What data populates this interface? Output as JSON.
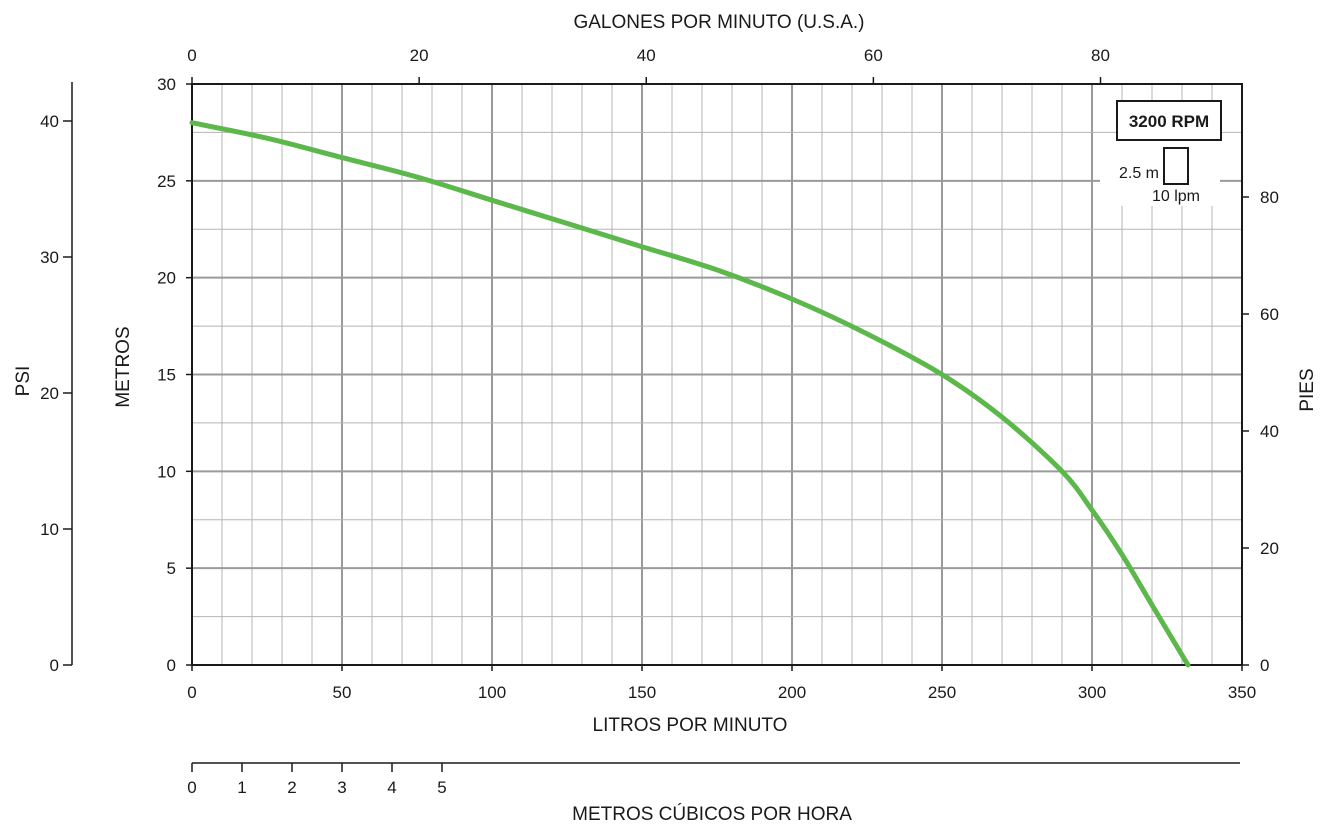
{
  "chart_data": {
    "type": "line",
    "title": "",
    "grid": true,
    "axes": {
      "x_bottom": {
        "label": "LITROS POR MINUTO",
        "min": 0,
        "max": 350,
        "ticks": [
          0,
          50,
          100,
          150,
          200,
          250,
          300,
          350
        ]
      },
      "x_top": {
        "label": "GALONES POR MINUTO (U.S.A.)",
        "ticks": [
          0,
          20,
          40,
          60,
          80
        ]
      },
      "x_secondary": {
        "label": "METROS CÚBICOS POR HORA",
        "ticks": [
          0,
          1,
          2,
          3,
          4,
          5
        ]
      },
      "y_left": {
        "label": "METROS",
        "min": 0,
        "max": 30,
        "ticks": [
          0,
          5,
          10,
          15,
          20,
          25,
          30
        ]
      },
      "y_psi": {
        "label": "PSI",
        "ticks": [
          0,
          10,
          20,
          30,
          40
        ]
      },
      "y_right": {
        "label": "PIES",
        "ticks": [
          0,
          20,
          40,
          60,
          80
        ]
      }
    },
    "legend_box": {
      "rpm": "3200 RPM",
      "scale_y": "2.5 m",
      "scale_x": "10 lpm",
      "placement": "top-right"
    },
    "series": [
      {
        "color": "#5cb84b",
        "x": [
          0,
          25,
          50,
          75,
          100,
          125,
          150,
          175,
          200,
          225,
          250,
          270,
          290,
          300,
          310,
          320,
          332
        ],
        "y": [
          28.0,
          27.2,
          26.2,
          25.2,
          24.0,
          22.8,
          21.6,
          20.4,
          18.9,
          17.1,
          15.0,
          12.8,
          10.0,
          8.0,
          5.7,
          3.1,
          0
        ]
      }
    ]
  }
}
